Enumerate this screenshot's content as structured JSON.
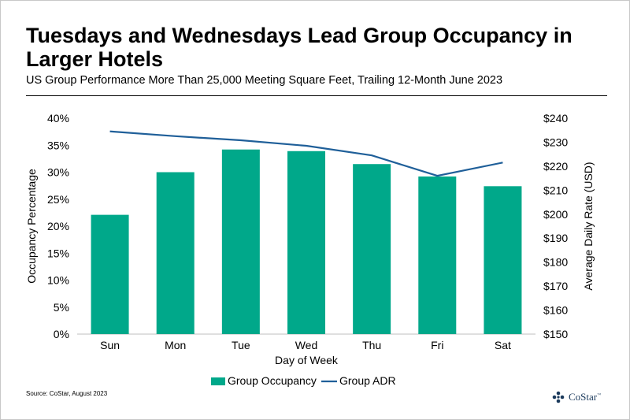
{
  "header": {
    "title": "Tuesdays and Wednesdays Lead Group Occupancy in Larger Hotels",
    "subtitle": "US Group Performance More Than 25,000 Meeting Square Feet, Trailing 12-Month June 2023"
  },
  "footer": {
    "source": "Source: CoStar, August 2023",
    "logo_text": "CoStar",
    "logo_tm": "™"
  },
  "colors": {
    "bar": "#00a88a",
    "line": "#1f5f99",
    "axis": "#bfbfbf",
    "logo": "#1b3a5c"
  },
  "chart_data": {
    "type": "bar",
    "categories": [
      "Sun",
      "Mon",
      "Tue",
      "Wed",
      "Thu",
      "Fri",
      "Sat"
    ],
    "series": [
      {
        "name": "Group Occupancy",
        "type": "bar",
        "axis": "left",
        "values": [
          22.1,
          30.0,
          34.2,
          33.9,
          31.5,
          29.2,
          27.4
        ]
      },
      {
        "name": "Group ADR",
        "type": "line",
        "axis": "right",
        "values": [
          234.5,
          232.5,
          230.8,
          228.5,
          224.5,
          216.0,
          221.5
        ]
      }
    ],
    "xlabel": "Day of Week",
    "ylabel": "Occupancy Percentage",
    "y2label": "Average Daily Rate (USD)",
    "ylim": [
      0,
      40
    ],
    "y2lim": [
      150,
      240
    ],
    "yticks": [
      "0%",
      "5%",
      "10%",
      "15%",
      "20%",
      "25%",
      "30%",
      "35%",
      "40%"
    ],
    "y2ticks": [
      "$150",
      "$160",
      "$170",
      "$180",
      "$190",
      "$200",
      "$210",
      "$220",
      "$230",
      "$240"
    ],
    "legend_position": "bottom",
    "grid": false
  }
}
